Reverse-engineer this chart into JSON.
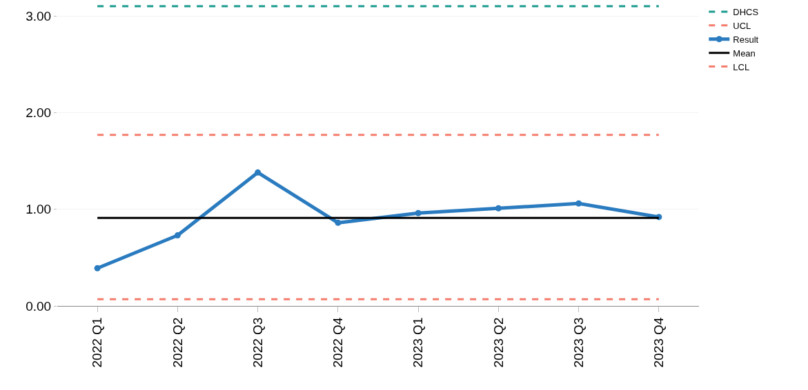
{
  "chart_data": {
    "type": "line",
    "categories": [
      "2022 Q1",
      "2022 Q2",
      "2022 Q3",
      "2022 Q4",
      "2023 Q1",
      "2023 Q2",
      "2023 Q3",
      "2023 Q4"
    ],
    "series": [
      {
        "name": "DHCS",
        "color": "#1a9a8e",
        "line_style": "dashed",
        "marker": "none",
        "values": [
          3.1,
          3.1,
          3.1,
          3.1,
          3.1,
          3.1,
          3.1,
          3.1
        ]
      },
      {
        "name": "UCL",
        "color": "#f47c6c",
        "line_style": "dashed",
        "marker": "none",
        "values": [
          1.77,
          1.77,
          1.77,
          1.77,
          1.77,
          1.77,
          1.77,
          1.77
        ]
      },
      {
        "name": "Result",
        "color": "#2a7bbf",
        "line_style": "solid",
        "marker": "circle",
        "values": [
          0.39,
          0.73,
          1.38,
          0.86,
          0.96,
          1.01,
          1.06,
          0.92
        ]
      },
      {
        "name": "Mean",
        "color": "#000000",
        "line_style": "solid",
        "marker": "none",
        "values": [
          0.91,
          0.91,
          0.91,
          0.91,
          0.91,
          0.91,
          0.91,
          0.91
        ]
      },
      {
        "name": "LCL",
        "color": "#f47c6c",
        "line_style": "dashed",
        "marker": "none",
        "values": [
          0.07,
          0.07,
          0.07,
          0.07,
          0.07,
          0.07,
          0.07,
          0.07
        ]
      }
    ],
    "ylim": [
      0,
      3.15
    ],
    "yticks": [
      {
        "value": 0,
        "label": "0.00"
      },
      {
        "value": 1,
        "label": "1.00"
      },
      {
        "value": 2,
        "label": "2.00"
      },
      {
        "value": 3,
        "label": "3.00"
      }
    ],
    "grid": "y",
    "legend": "top right"
  }
}
